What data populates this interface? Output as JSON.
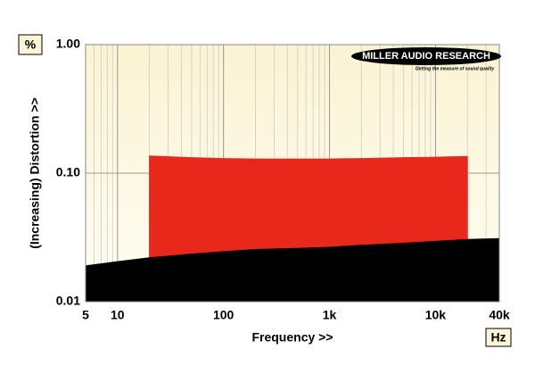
{
  "chart_data": {
    "type": "area",
    "units_box": "%",
    "x_units_box": "Hz",
    "xlabel": "Frequency >>",
    "ylabel": "(Increasing) Distortion >>",
    "logo": {
      "title": "MILLER AUDIO RESEARCH",
      "tagline": "Getting the measure of sound quality"
    },
    "x": [
      5,
      10,
      20,
      50,
      100,
      200,
      500,
      1000,
      2000,
      5000,
      10000,
      20000,
      40000
    ],
    "series": [
      {
        "color": "#e8281a",
        "values": [
          null,
          null,
          0.136,
          0.132,
          0.13,
          0.129,
          0.129,
          0.129,
          0.13,
          0.132,
          0.133,
          0.135,
          null
        ]
      },
      {
        "color": "#000000",
        "values": [
          0.019,
          0.0205,
          0.022,
          0.0235,
          0.0245,
          0.0255,
          0.026,
          0.0265,
          0.0275,
          0.0285,
          0.0295,
          0.0305,
          0.031
        ]
      }
    ],
    "xlim": [
      5,
      40000
    ],
    "ylim": [
      0.01,
      1
    ],
    "xlog": true,
    "ylog": true,
    "grid": true,
    "minor_grid": true,
    "xticks": [
      5,
      10,
      100,
      {
        "value": 1000,
        "label": "1k"
      },
      {
        "value": 10000,
        "label": "10k"
      },
      {
        "value": 40000,
        "label": "40k"
      }
    ],
    "yticks": [
      {
        "value": 1,
        "label": "1.00"
      },
      {
        "value": 0.1,
        "label": "0.10"
      },
      {
        "value": 0.01,
        "label": "0.01"
      }
    ]
  }
}
